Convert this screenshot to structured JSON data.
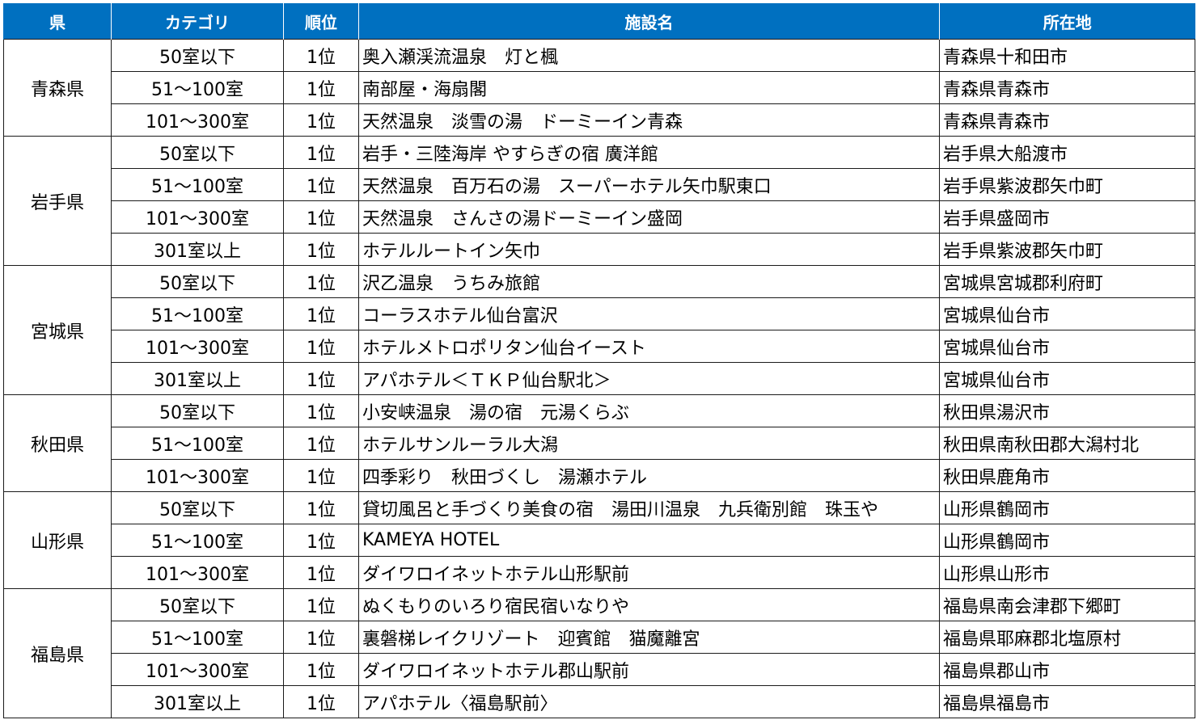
{
  "headers": [
    "県",
    "カテゴリ",
    "順位",
    "施設名",
    "所在地"
  ],
  "groups": [
    {
      "pref": "青森県",
      "rows": [
        {
          "category": "50室以下",
          "rank": "1位",
          "facility": "奥入瀬渓流温泉　灯と楓",
          "location": "青森県十和田市"
        },
        {
          "category": "51～100室",
          "rank": "1位",
          "facility": "南部屋・海扇閣",
          "location": "青森県青森市"
        },
        {
          "category": "101～300室",
          "rank": "1位",
          "facility": "天然温泉　淡雪の湯　ドーミーイン青森",
          "location": "青森県青森市"
        }
      ]
    },
    {
      "pref": "岩手県",
      "rows": [
        {
          "category": "50室以下",
          "rank": "1位",
          "facility": "岩手・三陸海岸 やすらぎの宿 廣洋館",
          "location": "岩手県大船渡市"
        },
        {
          "category": "51～100室",
          "rank": "1位",
          "facility": "天然温泉　百万石の湯　スーパーホテル矢巾駅東口",
          "location": "岩手県紫波郡矢巾町"
        },
        {
          "category": "101～300室",
          "rank": "1位",
          "facility": "天然温泉　さんさの湯ドーミーイン盛岡",
          "location": "岩手県盛岡市"
        },
        {
          "category": "301室以上",
          "rank": "1位",
          "facility": "ホテルルートイン矢巾",
          "location": "岩手県紫波郡矢巾町"
        }
      ]
    },
    {
      "pref": "宮城県",
      "rows": [
        {
          "category": "50室以下",
          "rank": "1位",
          "facility": "沢乙温泉　うちみ旅館",
          "location": "宮城県宮城郡利府町"
        },
        {
          "category": "51～100室",
          "rank": "1位",
          "facility": "コーラスホテル仙台富沢",
          "location": "宮城県仙台市"
        },
        {
          "category": "101～300室",
          "rank": "1位",
          "facility": "ホテルメトロポリタン仙台イースト",
          "location": "宮城県仙台市"
        },
        {
          "category": "301室以上",
          "rank": "1位",
          "facility": "アパホテル＜ＴＫＰ仙台駅北＞",
          "location": "宮城県仙台市"
        }
      ]
    },
    {
      "pref": "秋田県",
      "rows": [
        {
          "category": "50室以下",
          "rank": "1位",
          "facility": "小安峡温泉　湯の宿　元湯くらぶ",
          "location": "秋田県湯沢市"
        },
        {
          "category": "51～100室",
          "rank": "1位",
          "facility": "ホテルサンルーラル大潟",
          "location": "秋田県南秋田郡大潟村北"
        },
        {
          "category": "101～300室",
          "rank": "1位",
          "facility": "四季彩り　秋田づくし　湯瀬ホテル",
          "location": "秋田県鹿角市"
        }
      ]
    },
    {
      "pref": "山形県",
      "rows": [
        {
          "category": "50室以下",
          "rank": "1位",
          "facility": "貸切風呂と手づくり美食の宿　湯田川温泉　九兵衛別館　珠玉や",
          "location": "山形県鶴岡市"
        },
        {
          "category": "51～100室",
          "rank": "1位",
          "facility": "KAMEYA HOTEL",
          "location": "山形県鶴岡市"
        },
        {
          "category": "101～300室",
          "rank": "1位",
          "facility": "ダイワロイネットホテル山形駅前",
          "location": "山形県山形市"
        }
      ]
    },
    {
      "pref": "福島県",
      "rows": [
        {
          "category": "50室以下",
          "rank": "1位",
          "facility": "ぬくもりのいろり宿民宿いなりや",
          "location": "福島県南会津郡下郷町"
        },
        {
          "category": "51～100室",
          "rank": "1位",
          "facility": "裏磐梯レイクリゾート　迎賓館　猫魔離宮",
          "location": "福島県耶麻郡北塩原村"
        },
        {
          "category": "101～300室",
          "rank": "1位",
          "facility": "ダイワロイネットホテル郡山駅前",
          "location": "福島県郡山市"
        },
        {
          "category": "301室以上",
          "rank": "1位",
          "facility": "アパホテル〈福島駅前〉",
          "location": "福島県福島市"
        }
      ]
    }
  ]
}
